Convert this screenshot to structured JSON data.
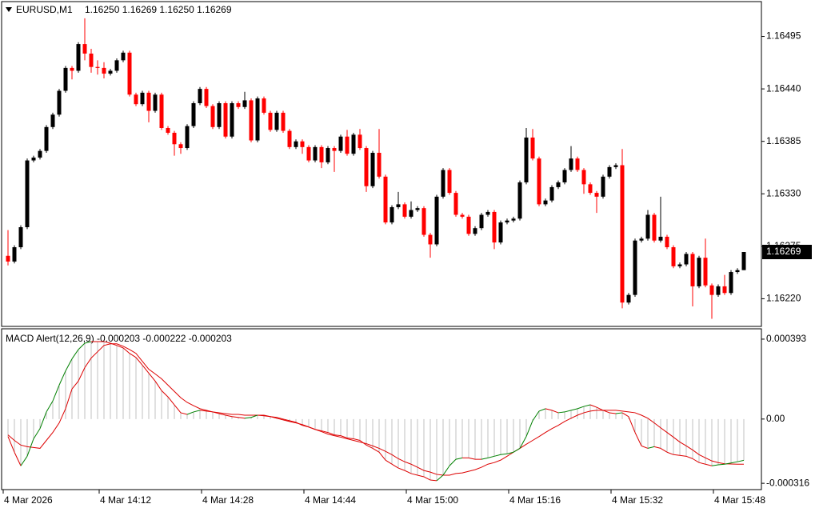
{
  "chart_data": [
    {
      "type": "candlestick",
      "title": "EURUSD,M1",
      "ohlc_label": "1.16250 1.16269 1.16250 1.16269",
      "categories": [
        "4 Mar 2026",
        null,
        null,
        null,
        null,
        null,
        null,
        null,
        null,
        null,
        null,
        null,
        null,
        null,
        null,
        "4 Mar 14:12",
        null,
        null,
        null,
        null,
        null,
        null,
        null,
        null,
        null,
        null,
        null,
        null,
        null,
        null,
        null,
        "4 Mar 14:28",
        null,
        null,
        null,
        null,
        null,
        null,
        null,
        null,
        null,
        null,
        null,
        null,
        null,
        null,
        null,
        "4 Mar 14:44",
        null,
        null,
        null,
        null,
        null,
        null,
        null,
        null,
        null,
        null,
        null,
        null,
        null,
        null,
        null,
        "4 Mar 15:00",
        null,
        null,
        null,
        null,
        null,
        null,
        null,
        null,
        null,
        null,
        null,
        null,
        null,
        null,
        null,
        "4 Mar 15:16",
        null,
        null,
        null,
        null,
        null,
        null,
        null,
        null,
        null,
        null,
        null,
        null,
        null,
        null,
        null,
        "4 Mar 15:32",
        null,
        null,
        null,
        null,
        null,
        null,
        null,
        null,
        null,
        null,
        null,
        null,
        null,
        null,
        null,
        "4 Mar 15:48",
        null,
        null,
        null,
        null
      ],
      "open": [
        1.16265,
        1.16259,
        1.16274,
        1.16295,
        1.16365,
        1.16368,
        1.16375,
        1.164,
        1.16413,
        1.16438,
        1.16462,
        1.16459,
        1.16487,
        1.16477,
        1.16463,
        1.16462,
        1.16456,
        1.16459,
        1.1647,
        1.16478,
        1.16434,
        1.16424,
        1.16436,
        1.16417,
        1.16434,
        1.16399,
        1.16394,
        1.16382,
        1.16378,
        1.16401,
        1.16425,
        1.1644,
        1.16422,
        1.164,
        1.16425,
        1.1639,
        1.16425,
        1.16421,
        1.16428,
        1.16386,
        1.1643,
        1.16415,
        1.16397,
        1.16415,
        1.16396,
        1.16379,
        1.16385,
        1.16379,
        1.16365,
        1.16379,
        1.16363,
        1.16378,
        1.16375,
        1.1639,
        1.16372,
        1.16392,
        1.16378,
        1.16338,
        1.16373,
        1.16348,
        1.163,
        1.16316,
        1.16319,
        1.16306,
        1.16313,
        1.16315,
        1.16287,
        1.16277,
        1.16327,
        1.16355,
        1.16331,
        1.16308,
        1.16306,
        1.16288,
        1.16294,
        1.16308,
        1.16311,
        1.16279,
        1.163,
        1.16302,
        1.16304,
        1.16342,
        1.16389,
        1.16367,
        1.16319,
        1.16323,
        1.16337,
        1.16342,
        1.16355,
        1.16367,
        1.16355,
        1.1634,
        1.16331,
        1.16327,
        1.16348,
        1.16358,
        1.1636,
        1.16216,
        1.16224,
        1.16281,
        1.16283,
        1.16308,
        1.16281,
        1.16285,
        1.16274,
        1.16254,
        1.16256,
        1.16267,
        1.16233,
        1.16263,
        1.16234,
        1.16224,
        1.16233,
        1.16226,
        1.16248,
        1.1625
      ],
      "high": [
        1.16292,
        1.16276,
        1.16297,
        1.16367,
        1.1637,
        1.16377,
        1.16402,
        1.16415,
        1.1644,
        1.16464,
        1.16464,
        1.16489,
        1.16514,
        1.16482,
        1.1647,
        1.16468,
        1.16461,
        1.16472,
        1.1648,
        1.1648,
        1.16436,
        1.16438,
        1.16438,
        1.16436,
        1.16436,
        1.16401,
        1.16396,
        1.16384,
        1.16403,
        1.16427,
        1.16442,
        1.16442,
        1.16424,
        1.16427,
        1.16427,
        1.16427,
        1.16427,
        1.16437,
        1.1643,
        1.16432,
        1.16432,
        1.16417,
        1.16417,
        1.16417,
        1.16398,
        1.16387,
        1.16387,
        1.16381,
        1.16381,
        1.16381,
        1.1638,
        1.1638,
        1.16392,
        1.16397,
        1.16394,
        1.16398,
        1.1638,
        1.16375,
        1.16398,
        1.1635,
        1.16318,
        1.16332,
        1.16321,
        1.16322,
        1.16317,
        1.16317,
        1.16289,
        1.16329,
        1.16357,
        1.16357,
        1.16333,
        1.1631,
        1.16308,
        1.16296,
        1.1631,
        1.16313,
        1.16313,
        1.16302,
        1.16304,
        1.16306,
        1.16344,
        1.16399,
        1.16398,
        1.16369,
        1.16325,
        1.16339,
        1.16344,
        1.16357,
        1.1638,
        1.16369,
        1.16357,
        1.16342,
        1.16333,
        1.1635,
        1.1636,
        1.16362,
        1.16377,
        1.16226,
        1.16283,
        1.16285,
        1.16313,
        1.1631,
        1.16327,
        1.16287,
        1.16276,
        1.16258,
        1.16269,
        1.16269,
        1.16265,
        1.16283,
        1.16236,
        1.16235,
        1.16245,
        1.1625,
        1.16252,
        1.16269
      ],
      "low": [
        1.16255,
        1.16257,
        1.16272,
        1.16293,
        1.16363,
        1.16366,
        1.16373,
        1.16398,
        1.16411,
        1.16436,
        1.1645,
        1.16457,
        1.1647,
        1.16457,
        1.16455,
        1.16451,
        1.16454,
        1.16457,
        1.16468,
        1.16432,
        1.16422,
        1.16422,
        1.16405,
        1.16415,
        1.16397,
        1.16392,
        1.1637,
        1.16372,
        1.16376,
        1.16399,
        1.16423,
        1.1642,
        1.16398,
        1.16398,
        1.16388,
        1.16388,
        1.16419,
        1.16419,
        1.16384,
        1.16384,
        1.16413,
        1.16395,
        1.16395,
        1.16394,
        1.16377,
        1.16377,
        1.16372,
        1.16363,
        1.16363,
        1.16357,
        1.16361,
        1.16353,
        1.16373,
        1.1637,
        1.1637,
        1.16376,
        1.16332,
        1.16336,
        1.16346,
        1.16298,
        1.16298,
        1.16314,
        1.16304,
        1.16304,
        1.16311,
        1.16285,
        1.16263,
        1.16275,
        1.16325,
        1.16329,
        1.16306,
        1.16304,
        1.16286,
        1.16286,
        1.16292,
        1.16306,
        1.16272,
        1.16277,
        1.16298,
        1.163,
        1.16302,
        1.1634,
        1.16365,
        1.16317,
        1.16317,
        1.16321,
        1.16335,
        1.1634,
        1.16353,
        1.16353,
        1.1633,
        1.16329,
        1.1631,
        1.16325,
        1.16346,
        1.16356,
        1.1621,
        1.16214,
        1.16222,
        1.16279,
        1.16281,
        1.16279,
        1.16279,
        1.16272,
        1.16252,
        1.16252,
        1.16254,
        1.16212,
        1.16231,
        1.16232,
        1.16199,
        1.16222,
        1.16224,
        1.16224,
        1.16246,
        1.1625
      ],
      "close": [
        1.16259,
        1.16274,
        1.16295,
        1.16365,
        1.16368,
        1.16375,
        1.164,
        1.16413,
        1.16438,
        1.16462,
        1.16459,
        1.16487,
        1.16477,
        1.16463,
        1.16462,
        1.16456,
        1.16459,
        1.1647,
        1.16478,
        1.16434,
        1.16424,
        1.16436,
        1.16417,
        1.16434,
        1.16399,
        1.16394,
        1.16382,
        1.16378,
        1.16401,
        1.16425,
        1.1644,
        1.16422,
        1.164,
        1.16425,
        1.1639,
        1.16425,
        1.16421,
        1.16428,
        1.16386,
        1.1643,
        1.16415,
        1.16397,
        1.16415,
        1.16396,
        1.16379,
        1.16385,
        1.16379,
        1.16365,
        1.16379,
        1.16363,
        1.16378,
        1.16375,
        1.1639,
        1.16372,
        1.16392,
        1.16378,
        1.16338,
        1.16373,
        1.16348,
        1.163,
        1.16316,
        1.16319,
        1.16306,
        1.16313,
        1.16315,
        1.16287,
        1.16277,
        1.16327,
        1.16355,
        1.16331,
        1.16308,
        1.16306,
        1.16288,
        1.16294,
        1.16308,
        1.16311,
        1.16279,
        1.163,
        1.16302,
        1.16304,
        1.16342,
        1.16389,
        1.16367,
        1.16319,
        1.16323,
        1.16337,
        1.16342,
        1.16355,
        1.16367,
        1.16355,
        1.1634,
        1.16331,
        1.16327,
        1.16348,
        1.16358,
        1.1636,
        1.16216,
        1.16224,
        1.16281,
        1.16283,
        1.16308,
        1.16281,
        1.16285,
        1.16274,
        1.16254,
        1.16256,
        1.16267,
        1.16233,
        1.16263,
        1.16234,
        1.16224,
        1.16233,
        1.16226,
        1.16248,
        1.1625,
        1.16269
      ],
      "up_color": "#000000",
      "down_color": "#ff0000",
      "ylim": [
        1.16191,
        1.16529
      ],
      "yticks": [
        1.16495,
        {
          "value": 1.1644,
          "label": "1.16440"
        },
        1.16385,
        {
          "value": 1.1633,
          "label": "1.16330"
        },
        1.16275,
        {
          "value": 1.1622,
          "label": "1.16220"
        }
      ],
      "last_price": {
        "value": 1.16269,
        "label": "1.16269"
      }
    },
    {
      "type": "macd",
      "title": "MACD Alert(12,26,9) -0.000203 -0.000222 -0.000203",
      "series": [
        {
          "color": "#dd0000",
          "rising_color": "#008000",
          "histogram_color": "#c0c0c0",
          "values": [
            -8.6e-05,
            -0.000163,
            -0.00023,
            -0.000183,
            -9.7e-05,
            -4.7e-05,
            3.5e-05,
            8.9e-05,
            0.000167,
            0.000237,
            0.000296,
            0.000342,
            0.000373,
            0.000381,
            0.000381,
            0.000381,
            0.000373,
            0.000362,
            0.00035,
            0.000323,
            0.000303,
            0.000265,
            0.000226,
            0.000187,
            0.00014,
            0.000109,
            7e-05,
            3.1e-05,
            2.3e-05,
            3.5e-05,
            4.3e-05,
            3.9e-05,
            3.5e-05,
            2.7e-05,
            1.9e-05,
            1.2e-05,
            8e-06,
            4e-06,
            8e-06,
            1.9e-05,
            1.9e-05,
            1.2e-05,
            4e-06,
            -4e-06,
            -1.2e-05,
            -1.9e-05,
            -2.7e-05,
            -3.9e-05,
            -5.1e-05,
            -5.8e-05,
            -6.6e-05,
            -7.8e-05,
            -8.2e-05,
            -9.3e-05,
            -9.7e-05,
            -0.000105,
            -0.000128,
            -0.000144,
            -0.000163,
            -0.000202,
            -0.000222,
            -0.000241,
            -0.000253,
            -0.000268,
            -0.000276,
            -0.000284,
            -0.0003,
            -0.000303,
            -0.000276,
            -0.00023,
            -0.000198,
            -0.000191,
            -0.000191,
            -0.000198,
            -0.000198,
            -0.000191,
            -0.000183,
            -0.000175,
            -0.000171,
            -0.000163,
            -0.000144,
            -8.6e-05,
            -8e-06,
            3.9e-05,
            5.1e-05,
            4.3e-05,
            3.1e-05,
            3.5e-05,
            4.3e-05,
            5.1e-05,
            6.2e-05,
            7e-05,
            5.8e-05,
            4.3e-05,
            3.1e-05,
            2.7e-05,
            3.1e-05,
            1.2e-05,
            -6.6e-05,
            -0.000132,
            -0.000144,
            -0.000136,
            -0.000144,
            -0.000163,
            -0.000175,
            -0.000179,
            -0.000183,
            -0.000195,
            -0.000214,
            -0.000222,
            -0.00023,
            -0.000225,
            -0.000222,
            -0.000216,
            -0.00021,
            -0.000203
          ]
        },
        {
          "color": "#dd0000",
          "values": [
            -7.8e-05,
            -0.000105,
            -0.000128,
            -0.000136,
            -0.00014,
            -0.000144,
            -0.000105,
            -6.6e-05,
            -1.9e-05,
            5.1e-05,
            0.000148,
            0.000187,
            0.000253,
            0.0003,
            0.000331,
            0.000362,
            0.00037,
            0.00037,
            0.000358,
            0.000342,
            0.000323,
            0.000284,
            0.000245,
            0.000222,
            0.000198,
            0.000167,
            0.000136,
            0.000105,
            8.2e-05,
            6.6e-05,
            5.1e-05,
            4.3e-05,
            3.5e-05,
            3.1e-05,
            2.7e-05,
            2.3e-05,
            2.3e-05,
            1.9e-05,
            1.9e-05,
            1.9e-05,
            1.6e-05,
            1.2e-05,
            8e-06,
            0,
            -8e-06,
            -1.6e-05,
            -3.1e-05,
            -3.9e-05,
            -5.1e-05,
            -6.2e-05,
            -7.4e-05,
            -8.2e-05,
            -8.9e-05,
            -9.7e-05,
            -0.000105,
            -0.000113,
            -0.000121,
            -0.000132,
            -0.000144,
            -0.000159,
            -0.000175,
            -0.000195,
            -0.00021,
            -0.000222,
            -0.000237,
            -0.000253,
            -0.000261,
            -0.000272,
            -0.000276,
            -0.000276,
            -0.000268,
            -0.000265,
            -0.000257,
            -0.000249,
            -0.000237,
            -0.000222,
            -0.000214,
            -0.000202,
            -0.000183,
            -0.000163,
            -0.000144,
            -0.000124,
            -0.000105,
            -8.6e-05,
            -6.6e-05,
            -4.7e-05,
            -3.1e-05,
            -1.2e-05,
            4e-06,
            1.9e-05,
            3.1e-05,
            3.9e-05,
            4.3e-05,
            4.3e-05,
            4.3e-05,
            4.3e-05,
            3.9e-05,
            3.5e-05,
            3.1e-05,
            1.9e-05,
            4e-06,
            -1.9e-05,
            -4.3e-05,
            -6.6e-05,
            -8.9e-05,
            -0.000113,
            -0.000132,
            -0.000152,
            -0.000175,
            -0.000191,
            -0.000206,
            -0.000214,
            -0.00022,
            -0.000221,
            -0.000222,
            -0.000222
          ]
        }
      ],
      "ylim": [
        -0.000347,
        0.00044
      ],
      "yticks": [
        0.000393,
        {
          "value": 0,
          "label": "0.00"
        },
        -0.000316
      ]
    }
  ]
}
